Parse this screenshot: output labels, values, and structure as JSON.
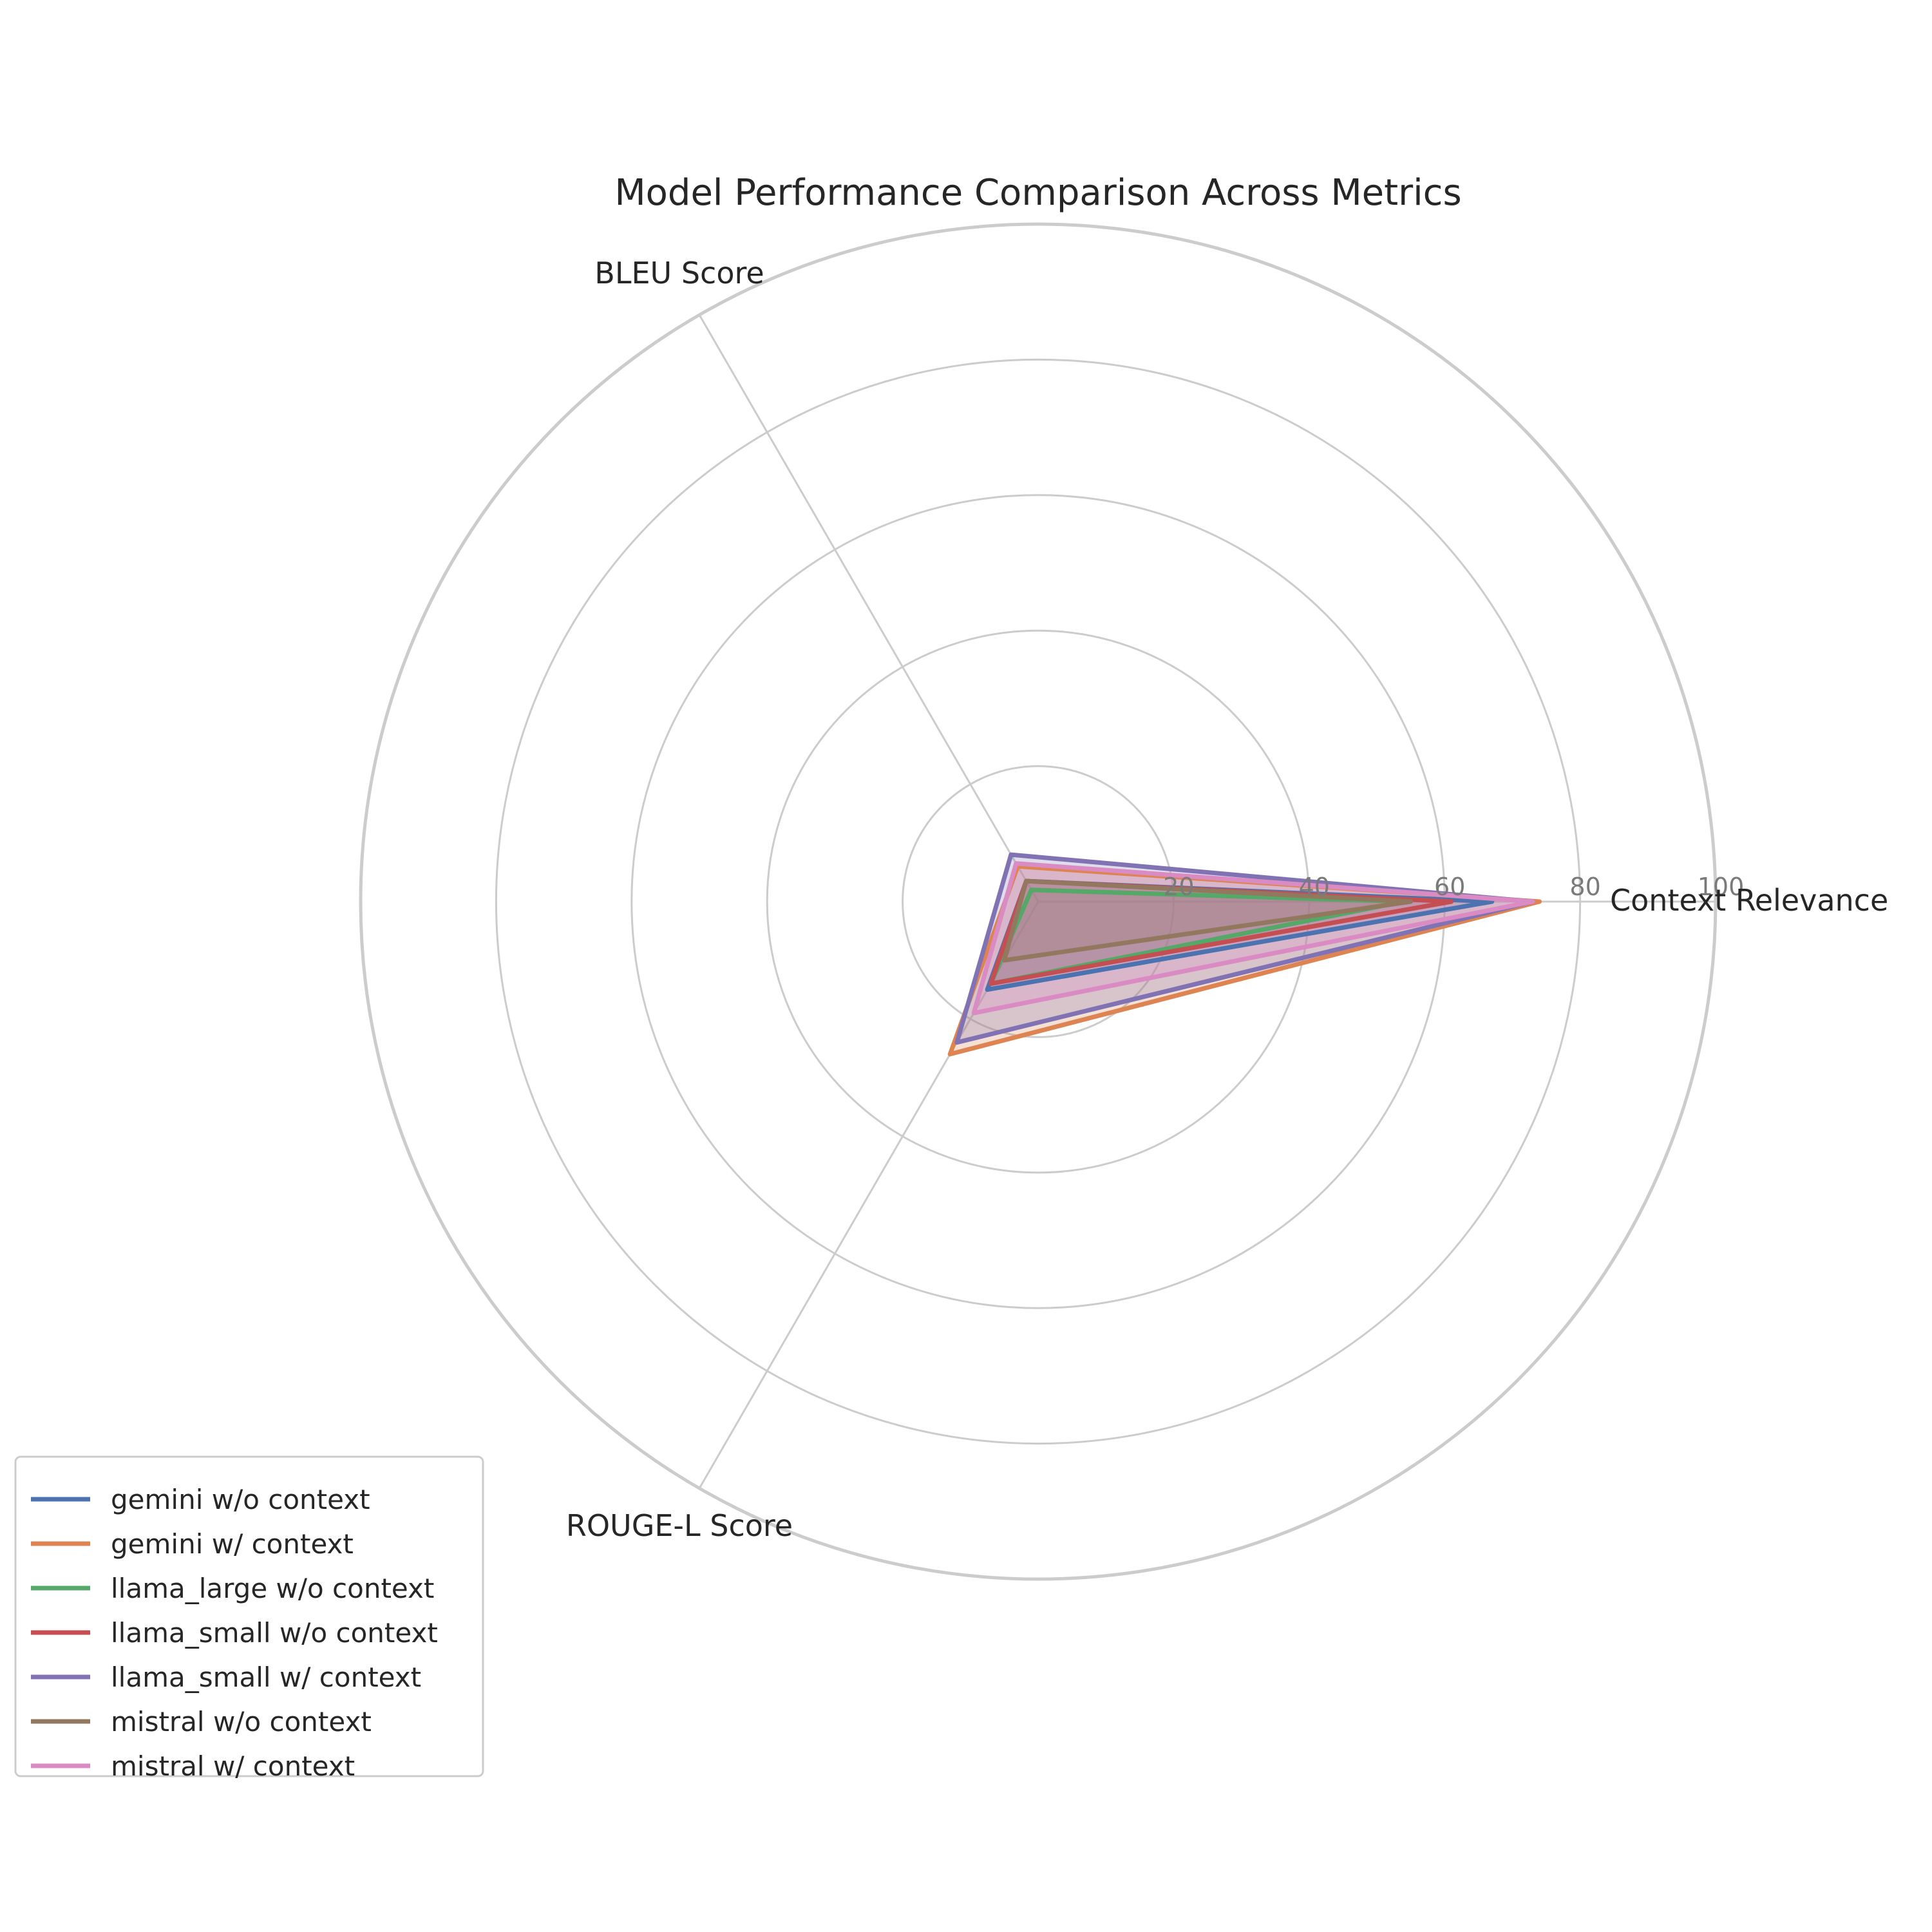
{
  "chart_data": {
    "type": "radar",
    "title": "Model Performance Comparison Across Metrics",
    "axes": [
      "Context Relevance",
      "BLEU Score",
      "ROUGE-L Score"
    ],
    "r_ticks": [
      "20",
      "40",
      "60",
      "80",
      "100"
    ],
    "r_range": [
      0,
      100
    ],
    "grid": true,
    "legend_position": "lower-left",
    "series": [
      {
        "name": "gemini w/o context",
        "color": "#4c72b0",
        "values": [
          67,
          3.5,
          15
        ]
      },
      {
        "name": "gemini w/ context",
        "color": "#dd8452",
        "values": [
          74,
          6,
          26
        ]
      },
      {
        "name": "llama_large w/o context",
        "color": "#55a868",
        "values": [
          54,
          2,
          14
        ]
      },
      {
        "name": "llama_small w/o context",
        "color": "#c44e52",
        "values": [
          61,
          3.5,
          14
        ]
      },
      {
        "name": "llama_small w/ context",
        "color": "#8172b3",
        "values": [
          73,
          8,
          24
        ]
      },
      {
        "name": "mistral w/o context",
        "color": "#937860",
        "values": [
          55,
          3.5,
          10
        ]
      },
      {
        "name": "mistral w/ context",
        "color": "#da8bc3",
        "values": [
          73,
          6.5,
          19
        ]
      }
    ]
  }
}
